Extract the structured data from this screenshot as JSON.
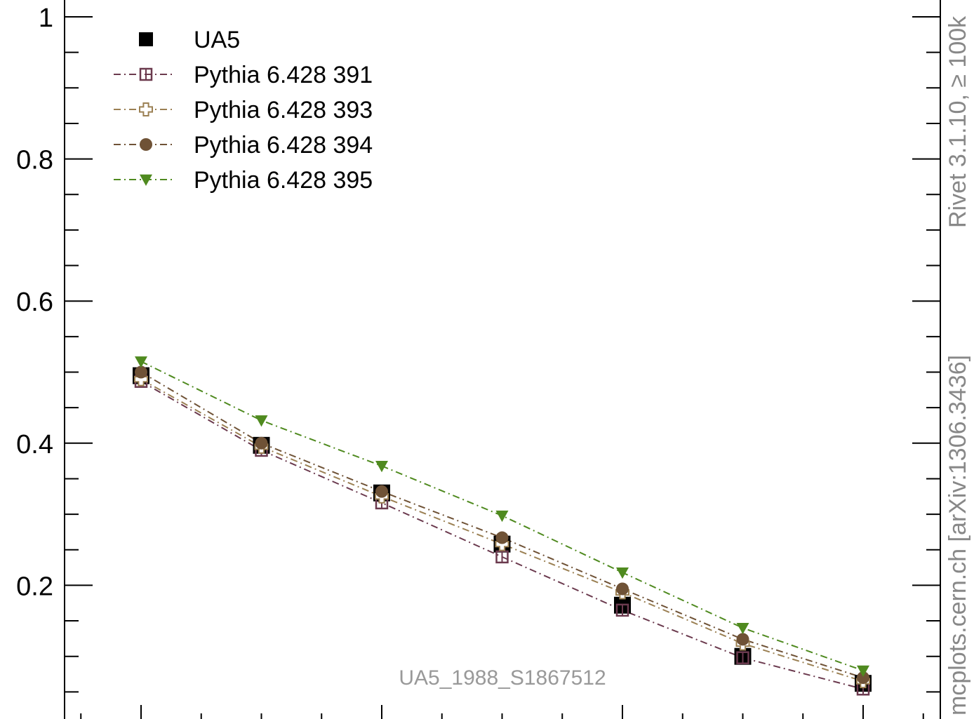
{
  "chart_data": {
    "type": "line",
    "title": "",
    "xlabel": "",
    "ylabel": "",
    "ylim": [
      0,
      1
    ],
    "y_ticks": [
      {
        "value": 0.2,
        "label": "0.2"
      },
      {
        "value": 0.4,
        "label": "0.4"
      },
      {
        "value": 0.6,
        "label": "0.6"
      },
      {
        "value": 0.8,
        "label": "0.8"
      },
      {
        "value": 1.0,
        "label": "1"
      }
    ],
    "x": [
      1,
      2,
      3,
      4,
      5,
      6,
      7
    ],
    "legend_position": "top-left",
    "series": [
      {
        "name": "UA5",
        "marker": "filled-square",
        "color": "#000000",
        "line": "none",
        "values": [
          0.495,
          0.397,
          0.33,
          0.258,
          0.172,
          0.1,
          0.062
        ]
      },
      {
        "name": "Pythia 6.428 391",
        "marker": "open-square",
        "color": "#6b3a4e",
        "line": "dash-dot",
        "values": [
          0.487,
          0.39,
          0.316,
          0.24,
          0.165,
          0.098,
          0.054
        ]
      },
      {
        "name": "Pythia 6.428 393",
        "marker": "open-cross",
        "color": "#9b8053",
        "line": "dash-dot",
        "values": [
          0.49,
          0.395,
          0.325,
          0.258,
          0.19,
          0.118,
          0.065
        ]
      },
      {
        "name": "Pythia 6.428 394",
        "marker": "filled-circle",
        "color": "#6f5236",
        "line": "dash-dot",
        "values": [
          0.5,
          0.4,
          0.332,
          0.267,
          0.195,
          0.124,
          0.07
        ]
      },
      {
        "name": "Pythia 6.428 395",
        "marker": "filled-triangle-down",
        "color": "#4f8a1f",
        "line": "dash-dot",
        "values": [
          0.515,
          0.432,
          0.368,
          0.298,
          0.218,
          0.14,
          0.08
        ]
      }
    ]
  },
  "watermark": "UA5_1988_S1867512",
  "side_labels": {
    "upper": "Rivet 3.1.10, ≥ 100k",
    "lower": "mcplots.cern.ch [arXiv:1306.3436]"
  }
}
